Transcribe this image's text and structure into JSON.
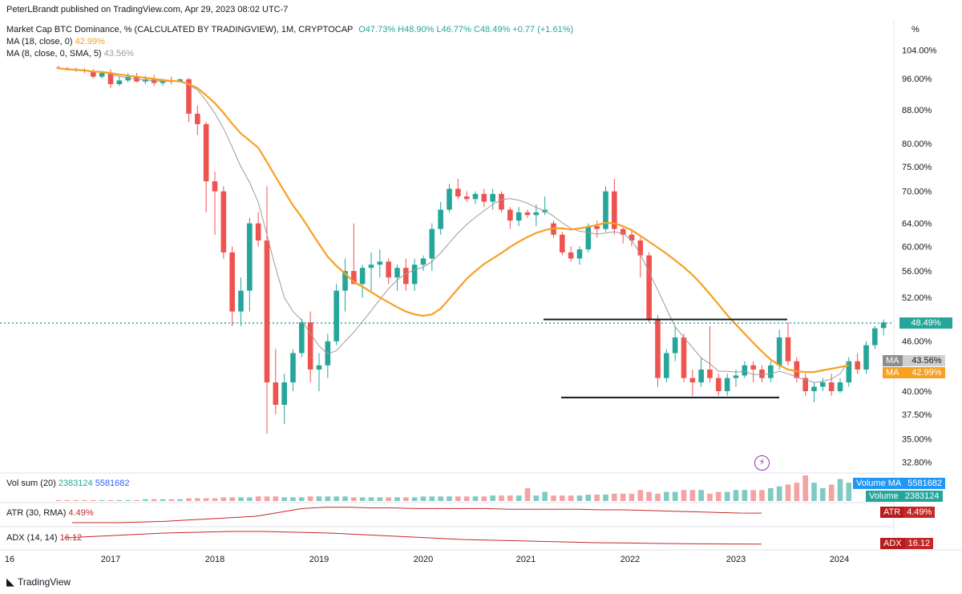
{
  "publisher": "PeterLBrandt published on TradingView.com, Apr 29, 2023 08:02 UTC-7",
  "symbol_line": {
    "name": "Market Cap BTC Dominance, % (CALCULATED BY TRADINGVIEW), 1M, CRYPTOCAP",
    "o": "O47.73%",
    "h": "H48.90%",
    "l": "L46.77%",
    "c": "C48.49%",
    "chg": "+0.77 (+1.61%)"
  },
  "ma18": {
    "label": "MA (18, close, 0)",
    "value": "42.99%"
  },
  "ma8": {
    "label": "MA (8, close, 0, SMA, 5)",
    "value": "43.56%"
  },
  "vol": {
    "label": "Vol sum (20)",
    "v1": "2383124",
    "v2": "5581682",
    "tag_ma_label": "Volume MA",
    "tag_ma_value": "5581682",
    "tag_vol_label": "Volume",
    "tag_vol_value": "2383124"
  },
  "atr": {
    "label": "ATR (30, RMA)",
    "value": "4.49%",
    "tag_label": "ATR",
    "tag_value": "4.49%"
  },
  "adx": {
    "label": "ADX (14, 14)",
    "value": "16.12",
    "tag_label": "ADX",
    "tag_value": "16.12"
  },
  "price_axis": {
    "unit": "%",
    "ticks": [
      "104.00%",
      "96.00%",
      "88.00%",
      "80.00%",
      "75.00%",
      "70.00%",
      "64.00%",
      "60.00%",
      "56.00%",
      "52.00%",
      "46.00%",
      "40.00%",
      "37.50%",
      "35.00%",
      "32.80%"
    ],
    "tick_values": [
      104,
      96,
      88,
      80,
      75,
      70,
      64,
      60,
      56,
      52,
      46,
      40,
      37.5,
      35,
      32.8
    ],
    "last_price_tag": "48.49%",
    "ma8_tag_label": "MA",
    "ma8_tag_value": "43.56%",
    "ma18_tag_label": "MA",
    "ma18_tag_value": "42.99%"
  },
  "time_axis": {
    "ticks": [
      "16",
      "2017",
      "2018",
      "2019",
      "2020",
      "2021",
      "2022",
      "2023",
      "2024"
    ]
  },
  "footer": "TradingView",
  "colors": {
    "up": "#26a69a",
    "down": "#ef5350",
    "ma18": "#f7a021",
    "ma8": "#9b9b9b",
    "last": "#26a69a",
    "atr": "#c62828"
  },
  "chart_data": {
    "type": "candlestick",
    "title": "Market Cap BTC Dominance, %",
    "x_unit": "month",
    "y_scale": "log",
    "y_range": [
      32.8,
      104
    ],
    "start": "2016-07",
    "candles": [
      {
        "o": 99.0,
        "h": 99.5,
        "l": 98.5,
        "c": 98.8
      },
      {
        "o": 98.8,
        "h": 99.2,
        "l": 98.2,
        "c": 98.5
      },
      {
        "o": 98.5,
        "h": 99.0,
        "l": 97.8,
        "c": 98.2
      },
      {
        "o": 98.2,
        "h": 98.8,
        "l": 97.5,
        "c": 98.0
      },
      {
        "o": 98.0,
        "h": 98.6,
        "l": 96.0,
        "c": 96.5
      },
      {
        "o": 96.5,
        "h": 98.0,
        "l": 96.0,
        "c": 97.5
      },
      {
        "o": 97.5,
        "h": 98.5,
        "l": 93.5,
        "c": 94.5
      },
      {
        "o": 94.5,
        "h": 96.5,
        "l": 94.0,
        "c": 95.5
      },
      {
        "o": 95.5,
        "h": 97.5,
        "l": 95.0,
        "c": 96.5
      },
      {
        "o": 96.5,
        "h": 97.5,
        "l": 95.0,
        "c": 95.2
      },
      {
        "o": 95.2,
        "h": 96.8,
        "l": 94.5,
        "c": 95.8
      },
      {
        "o": 95.8,
        "h": 97.0,
        "l": 94.0,
        "c": 94.8
      },
      {
        "o": 94.8,
        "h": 96.0,
        "l": 94.0,
        "c": 95.5
      },
      {
        "o": 95.5,
        "h": 96.5,
        "l": 94.5,
        "c": 95.2
      },
      {
        "o": 95.2,
        "h": 96.0,
        "l": 95.0,
        "c": 95.8
      },
      {
        "o": 95.8,
        "h": 96.2,
        "l": 85.0,
        "c": 87.0
      },
      {
        "o": 87.0,
        "h": 89.0,
        "l": 82.0,
        "c": 84.5
      },
      {
        "o": 84.5,
        "h": 85.0,
        "l": 66.0,
        "c": 72.0
      },
      {
        "o": 72.0,
        "h": 74.0,
        "l": 62.0,
        "c": 70.0
      },
      {
        "o": 70.0,
        "h": 71.0,
        "l": 58.0,
        "c": 59.0
      },
      {
        "o": 59.0,
        "h": 60.0,
        "l": 48.0,
        "c": 50.0
      },
      {
        "o": 50.0,
        "h": 55.0,
        "l": 48.0,
        "c": 53.0
      },
      {
        "o": 53.0,
        "h": 65.0,
        "l": 50.0,
        "c": 64.0
      },
      {
        "o": 64.0,
        "h": 66.0,
        "l": 60.0,
        "c": 61.0
      },
      {
        "o": 61.0,
        "h": 71.0,
        "l": 35.5,
        "c": 41.0
      },
      {
        "o": 41.0,
        "h": 45.0,
        "l": 37.5,
        "c": 38.5
      },
      {
        "o": 38.5,
        "h": 42.0,
        "l": 36.5,
        "c": 41.0
      },
      {
        "o": 41.0,
        "h": 45.0,
        "l": 40.0,
        "c": 44.5
      },
      {
        "o": 44.5,
        "h": 49.0,
        "l": 44.0,
        "c": 48.5
      },
      {
        "o": 48.5,
        "h": 50.0,
        "l": 41.0,
        "c": 42.5
      },
      {
        "o": 42.5,
        "h": 44.5,
        "l": 40.0,
        "c": 43.0
      },
      {
        "o": 43.0,
        "h": 47.0,
        "l": 41.5,
        "c": 46.0
      },
      {
        "o": 46.0,
        "h": 54.0,
        "l": 45.5,
        "c": 53.0
      },
      {
        "o": 53.0,
        "h": 58.0,
        "l": 50.0,
        "c": 56.0
      },
      {
        "o": 56.0,
        "h": 64.0,
        "l": 54.0,
        "c": 54.0
      },
      {
        "o": 54.0,
        "h": 57.0,
        "l": 52.0,
        "c": 56.5
      },
      {
        "o": 56.5,
        "h": 59.0,
        "l": 53.0,
        "c": 57.0
      },
      {
        "o": 57.0,
        "h": 59.5,
        "l": 55.0,
        "c": 57.5
      },
      {
        "o": 57.5,
        "h": 58.0,
        "l": 54.0,
        "c": 55.0
      },
      {
        "o": 55.0,
        "h": 57.0,
        "l": 53.0,
        "c": 56.5
      },
      {
        "o": 56.5,
        "h": 58.0,
        "l": 53.0,
        "c": 54.0
      },
      {
        "o": 54.0,
        "h": 58.0,
        "l": 53.0,
        "c": 57.0
      },
      {
        "o": 57.0,
        "h": 58.5,
        "l": 56.0,
        "c": 58.0
      },
      {
        "o": 58.0,
        "h": 64.0,
        "l": 56.0,
        "c": 63.0
      },
      {
        "o": 63.0,
        "h": 68.0,
        "l": 62.0,
        "c": 66.5
      },
      {
        "o": 66.5,
        "h": 71.5,
        "l": 66.0,
        "c": 70.5
      },
      {
        "o": 70.5,
        "h": 72.5,
        "l": 68.5,
        "c": 69.0
      },
      {
        "o": 69.0,
        "h": 70.0,
        "l": 68.0,
        "c": 68.5
      },
      {
        "o": 68.5,
        "h": 70.0,
        "l": 67.5,
        "c": 69.5
      },
      {
        "o": 69.5,
        "h": 70.5,
        "l": 67.0,
        "c": 68.0
      },
      {
        "o": 68.0,
        "h": 70.5,
        "l": 66.5,
        "c": 69.5
      },
      {
        "o": 69.5,
        "h": 70.0,
        "l": 66.0,
        "c": 66.5
      },
      {
        "o": 66.5,
        "h": 67.0,
        "l": 63.0,
        "c": 64.5
      },
      {
        "o": 64.5,
        "h": 67.0,
        "l": 63.5,
        "c": 66.0
      },
      {
        "o": 66.0,
        "h": 66.5,
        "l": 65.0,
        "c": 65.5
      },
      {
        "o": 65.5,
        "h": 67.5,
        "l": 63.5,
        "c": 66.0
      },
      {
        "o": 66.0,
        "h": 69.0,
        "l": 65.5,
        "c": 66.5
      },
      {
        "o": 64.0,
        "h": 64.5,
        "l": 61.5,
        "c": 62.0
      },
      {
        "o": 62.0,
        "h": 62.5,
        "l": 58.5,
        "c": 59.0
      },
      {
        "o": 59.0,
        "h": 60.0,
        "l": 57.5,
        "c": 58.0
      },
      {
        "o": 58.0,
        "h": 60.0,
        "l": 57.0,
        "c": 59.5
      },
      {
        "o": 59.5,
        "h": 64.0,
        "l": 59.0,
        "c": 63.5
      },
      {
        "o": 63.5,
        "h": 64.5,
        "l": 61.5,
        "c": 63.0
      },
      {
        "o": 63.0,
        "h": 71.0,
        "l": 62.5,
        "c": 70.0
      },
      {
        "o": 70.0,
        "h": 72.5,
        "l": 62.0,
        "c": 63.0
      },
      {
        "o": 63.0,
        "h": 63.5,
        "l": 60.5,
        "c": 62.0
      },
      {
        "o": 62.0,
        "h": 63.0,
        "l": 60.0,
        "c": 61.0
      },
      {
        "o": 61.0,
        "h": 61.5,
        "l": 55.0,
        "c": 58.5
      },
      {
        "o": 58.5,
        "h": 59.0,
        "l": 48.5,
        "c": 49.0
      },
      {
        "o": 49.0,
        "h": 49.5,
        "l": 40.5,
        "c": 41.5
      },
      {
        "o": 41.5,
        "h": 45.0,
        "l": 41.0,
        "c": 44.5
      },
      {
        "o": 44.5,
        "h": 48.0,
        "l": 43.5,
        "c": 46.5
      },
      {
        "o": 46.5,
        "h": 47.0,
        "l": 41.0,
        "c": 41.5
      },
      {
        "o": 41.5,
        "h": 42.5,
        "l": 39.5,
        "c": 41.0
      },
      {
        "o": 41.0,
        "h": 44.0,
        "l": 40.5,
        "c": 42.5
      },
      {
        "o": 42.5,
        "h": 48.0,
        "l": 41.0,
        "c": 41.5
      },
      {
        "o": 41.5,
        "h": 42.0,
        "l": 39.5,
        "c": 40.0
      },
      {
        "o": 40.0,
        "h": 42.0,
        "l": 39.5,
        "c": 41.5
      },
      {
        "o": 41.5,
        "h": 42.5,
        "l": 40.5,
        "c": 41.8
      },
      {
        "o": 41.8,
        "h": 43.5,
        "l": 41.5,
        "c": 43.0
      },
      {
        "o": 43.0,
        "h": 43.5,
        "l": 41.0,
        "c": 42.5
      },
      {
        "o": 42.5,
        "h": 43.0,
        "l": 41.0,
        "c": 41.5
      },
      {
        "o": 41.5,
        "h": 43.5,
        "l": 41.0,
        "c": 43.0
      },
      {
        "o": 43.0,
        "h": 47.5,
        "l": 42.5,
        "c": 46.5
      },
      {
        "o": 46.5,
        "h": 48.5,
        "l": 43.0,
        "c": 43.5
      },
      {
        "o": 43.5,
        "h": 44.0,
        "l": 41.0,
        "c": 41.5
      },
      {
        "o": 41.5,
        "h": 42.0,
        "l": 39.5,
        "c": 40.0
      },
      {
        "o": 40.0,
        "h": 41.0,
        "l": 38.8,
        "c": 40.5
      },
      {
        "o": 40.5,
        "h": 41.5,
        "l": 40.0,
        "c": 41.0
      },
      {
        "o": 41.0,
        "h": 42.0,
        "l": 39.5,
        "c": 40.0
      },
      {
        "o": 40.0,
        "h": 41.5,
        "l": 39.8,
        "c": 41.0
      },
      {
        "o": 41.0,
        "h": 44.0,
        "l": 40.5,
        "c": 43.5
      },
      {
        "o": 43.5,
        "h": 44.5,
        "l": 42.0,
        "c": 42.5
      },
      {
        "o": 42.5,
        "h": 46.0,
        "l": 42.0,
        "c": 45.5
      },
      {
        "o": 45.5,
        "h": 48.0,
        "l": 45.0,
        "c": 47.7
      },
      {
        "o": 47.73,
        "h": 48.9,
        "l": 46.77,
        "c": 48.49
      }
    ],
    "ma18": [
      98.8,
      98.5,
      98.4,
      98.2,
      97.9,
      97.8,
      97.5,
      97.1,
      96.8,
      96.5,
      96.2,
      95.9,
      95.6,
      95.4,
      95.2,
      94.5,
      93.5,
      91.6,
      89.6,
      87.2,
      84.6,
      82.3,
      80.7,
      79.1,
      76.0,
      72.9,
      70.0,
      67.3,
      65.1,
      62.7,
      60.4,
      58.3,
      56.8,
      55.6,
      54.3,
      53.6,
      52.8,
      52.0,
      51.3,
      50.6,
      50.0,
      49.6,
      49.4,
      49.6,
      50.4,
      51.8,
      53.3,
      54.8,
      56.0,
      57.1,
      58.0,
      58.9,
      59.9,
      60.8,
      61.6,
      62.3,
      62.8,
      63.1,
      63.1,
      62.9,
      63.1,
      63.4,
      63.7,
      64.1,
      64.0,
      63.5,
      62.8,
      61.8,
      60.8,
      59.8,
      58.8,
      57.7,
      56.6,
      55.4,
      54.0,
      52.5,
      51.0,
      49.5,
      48.2,
      47.0,
      45.8,
      44.7,
      43.7,
      43.0,
      42.5,
      42.3,
      42.2,
      42.2,
      42.4,
      42.6,
      42.8,
      43.0
    ],
    "ma8": [
      98.8,
      98.6,
      98.4,
      98.2,
      97.9,
      97.7,
      97.2,
      96.6,
      96.2,
      95.8,
      95.6,
      95.4,
      95.3,
      95.2,
      95.3,
      94.3,
      93.0,
      90.2,
      87.1,
      83.5,
      79.2,
      75.0,
      71.8,
      67.9,
      62.0,
      56.5,
      52.0,
      50.0,
      48.8,
      47.0,
      45.4,
      44.4,
      44.8,
      46.0,
      47.2,
      48.6,
      50.1,
      51.7,
      53.3,
      54.6,
      55.6,
      56.2,
      56.6,
      57.5,
      58.9,
      60.6,
      62.3,
      63.8,
      65.1,
      66.3,
      67.5,
      68.4,
      68.6,
      68.3,
      67.7,
      66.9,
      66.3,
      65.3,
      64.1,
      63.1,
      62.6,
      62.4,
      62.1,
      62.3,
      62.5,
      62.2,
      61.1,
      58.7,
      55.8,
      53.1,
      50.4,
      47.9,
      46.5,
      45.2,
      43.9,
      43.2,
      42.3,
      42.3,
      42.2,
      42.3,
      41.9,
      41.9,
      42.0,
      42.3,
      42.0,
      41.6,
      41.3,
      41.0,
      41.1,
      41.4,
      42.0,
      43.56
    ],
    "last_price": 48.49,
    "support_line": [
      39.3,
      39.3
    ],
    "resistance_line": [
      48.9,
      48.9
    ],
    "volume": [
      1,
      1,
      1,
      1,
      1,
      1,
      1,
      1,
      1,
      1,
      2,
      2,
      2,
      2,
      2,
      3,
      3,
      3,
      3,
      4,
      4,
      4,
      4,
      5,
      5,
      5,
      4,
      4,
      4,
      5,
      5,
      5,
      5,
      5,
      4,
      4,
      4,
      4,
      4,
      4,
      4,
      4,
      5,
      5,
      5,
      5,
      5,
      5,
      5,
      5,
      6,
      6,
      6,
      6,
      14,
      6,
      10,
      6,
      6,
      6,
      6,
      7,
      7,
      7,
      8,
      8,
      8,
      12,
      10,
      8,
      10,
      10,
      12,
      12,
      12,
      8,
      10,
      10,
      12,
      12,
      12,
      12,
      14,
      16,
      18,
      20,
      28,
      20,
      14,
      18,
      24,
      20
    ],
    "atr_level": [
      3.0,
      3.0,
      3.0,
      3.1,
      3.2,
      3.4,
      3.6,
      3.8,
      4.0,
      4.6,
      5.2,
      5.4,
      5.4,
      5.3,
      5.3,
      5.2,
      5.2,
      5.2,
      5.2,
      5.1,
      5.1,
      5.1,
      5.1,
      5.0,
      5.0,
      4.9,
      4.8,
      4.7,
      4.6,
      4.5,
      4.49
    ],
    "adx_level": [
      20,
      21,
      22,
      23,
      23.5,
      24,
      24,
      23.5,
      23,
      22,
      21,
      20,
      19,
      18.5,
      18,
      17.5,
      17,
      16.8,
      16.5,
      16.3,
      16.2,
      16.12
    ]
  }
}
